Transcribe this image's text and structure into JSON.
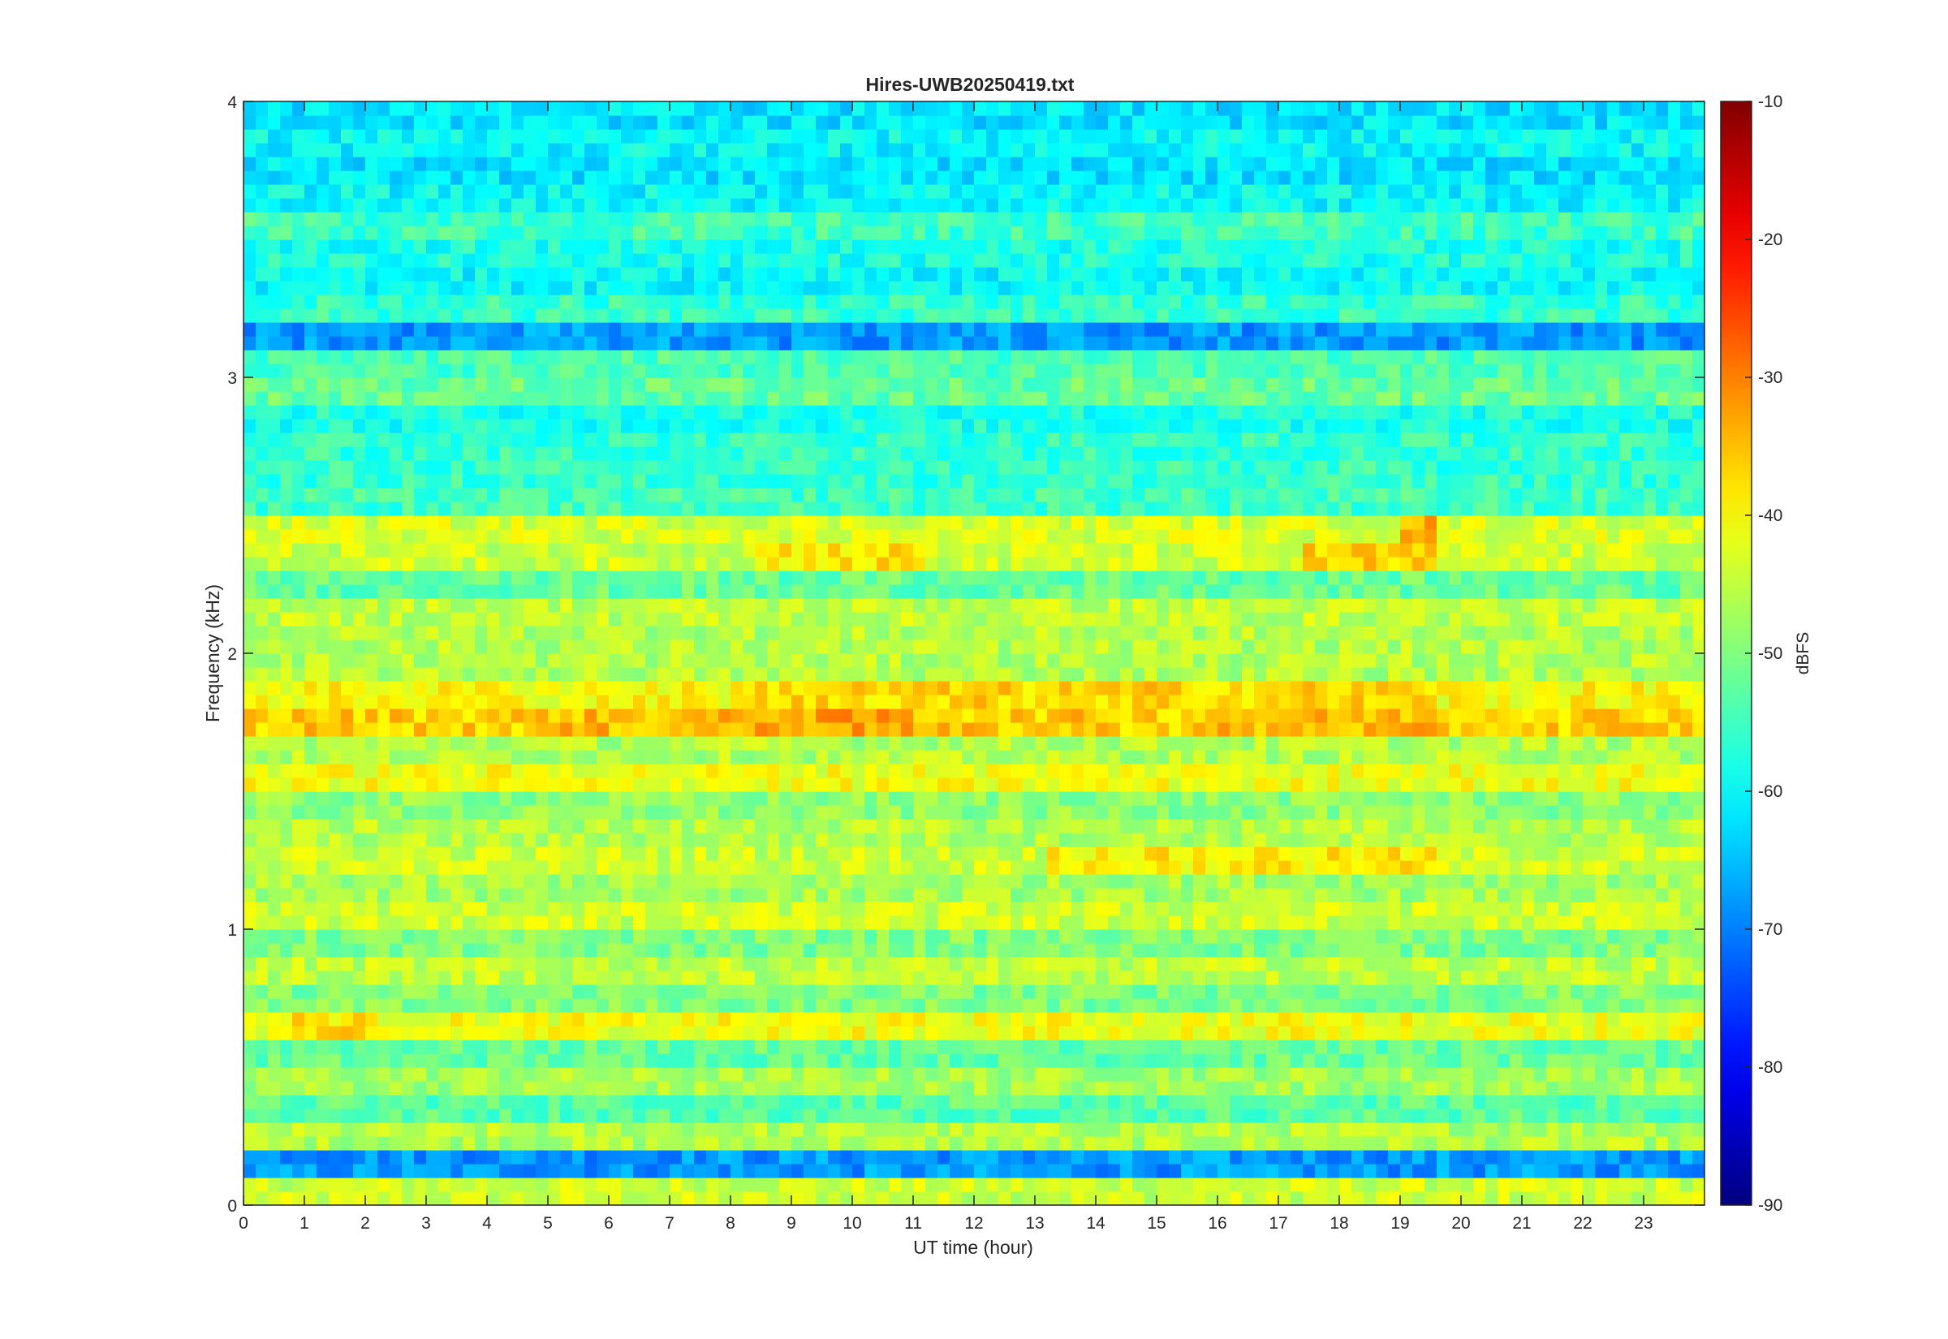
{
  "chart_data": {
    "type": "heatmap",
    "title": "Hires-UWB20250419.txt",
    "xlabel": "UT time (hour)",
    "ylabel": "Frequency (kHz)",
    "xlim": [
      0,
      24
    ],
    "ylim": [
      0,
      4
    ],
    "x_ticks": [
      "0",
      "1",
      "2",
      "3",
      "4",
      "5",
      "6",
      "7",
      "8",
      "9",
      "10",
      "11",
      "12",
      "13",
      "14",
      "15",
      "16",
      "17",
      "18",
      "19",
      "20",
      "21",
      "22",
      "23"
    ],
    "y_ticks": [
      "0",
      "1",
      "2",
      "3",
      "4"
    ],
    "colorbar": {
      "label": "dBFS",
      "clim": [
        -90,
        -10
      ],
      "ticks": [
        "-90",
        "-80",
        "-70",
        "-60",
        "-50",
        "-40",
        "-30",
        "-20",
        "-10"
      ],
      "colormap": "jet"
    },
    "band_centers_khz": [
      0.05,
      0.25,
      0.35,
      0.45,
      0.55,
      0.65,
      0.75,
      0.85,
      0.95,
      1.05,
      1.15,
      1.25,
      1.35,
      1.45,
      1.55,
      1.65,
      1.75,
      1.85,
      1.95,
      2.05,
      2.15,
      2.25,
      2.35,
      2.45,
      2.55,
      2.65,
      2.75,
      2.85,
      2.95,
      3.05,
      3.25,
      3.35,
      3.45,
      3.55,
      3.65,
      3.75,
      3.85,
      3.95
    ],
    "band_levels_dbfs": [
      -44,
      -46,
      -53,
      -47,
      -52,
      -41,
      -50,
      -45,
      -50,
      -44,
      -47,
      -44,
      -46,
      -49,
      -41,
      -46,
      -36,
      -40,
      -46,
      -46,
      -45,
      -52,
      -44,
      -43,
      -55,
      -56,
      -56,
      -58,
      -52,
      -54,
      -56,
      -60,
      -58,
      -55,
      -60,
      -62,
      -60,
      -62
    ],
    "background_dbfs": -68,
    "strong_segments": [
      {
        "freq_khz": 1.75,
        "x": [
          8.5,
          11.0
        ],
        "dbfs": -33
      },
      {
        "freq_khz": 1.75,
        "x": [
          5.0,
          8.5
        ],
        "dbfs": -35
      },
      {
        "freq_khz": 1.75,
        "x": [
          15.8,
          19.5
        ],
        "dbfs": -35
      },
      {
        "freq_khz": 1.85,
        "x": [
          8.5,
          19.6
        ],
        "dbfs": -37
      },
      {
        "freq_khz": 2.35,
        "x": [
          8.5,
          11.2
        ],
        "dbfs": -38
      },
      {
        "freq_khz": 2.35,
        "x": [
          17.5,
          19.6
        ],
        "dbfs": -37
      },
      {
        "freq_khz": 2.45,
        "x": [
          19.0,
          19.5
        ],
        "dbfs": -34
      },
      {
        "freq_khz": 1.25,
        "x": [
          13.3,
          19.6
        ],
        "dbfs": -39
      },
      {
        "freq_khz": 0.65,
        "x": [
          0.8,
          2.0
        ],
        "dbfs": -38
      }
    ]
  }
}
